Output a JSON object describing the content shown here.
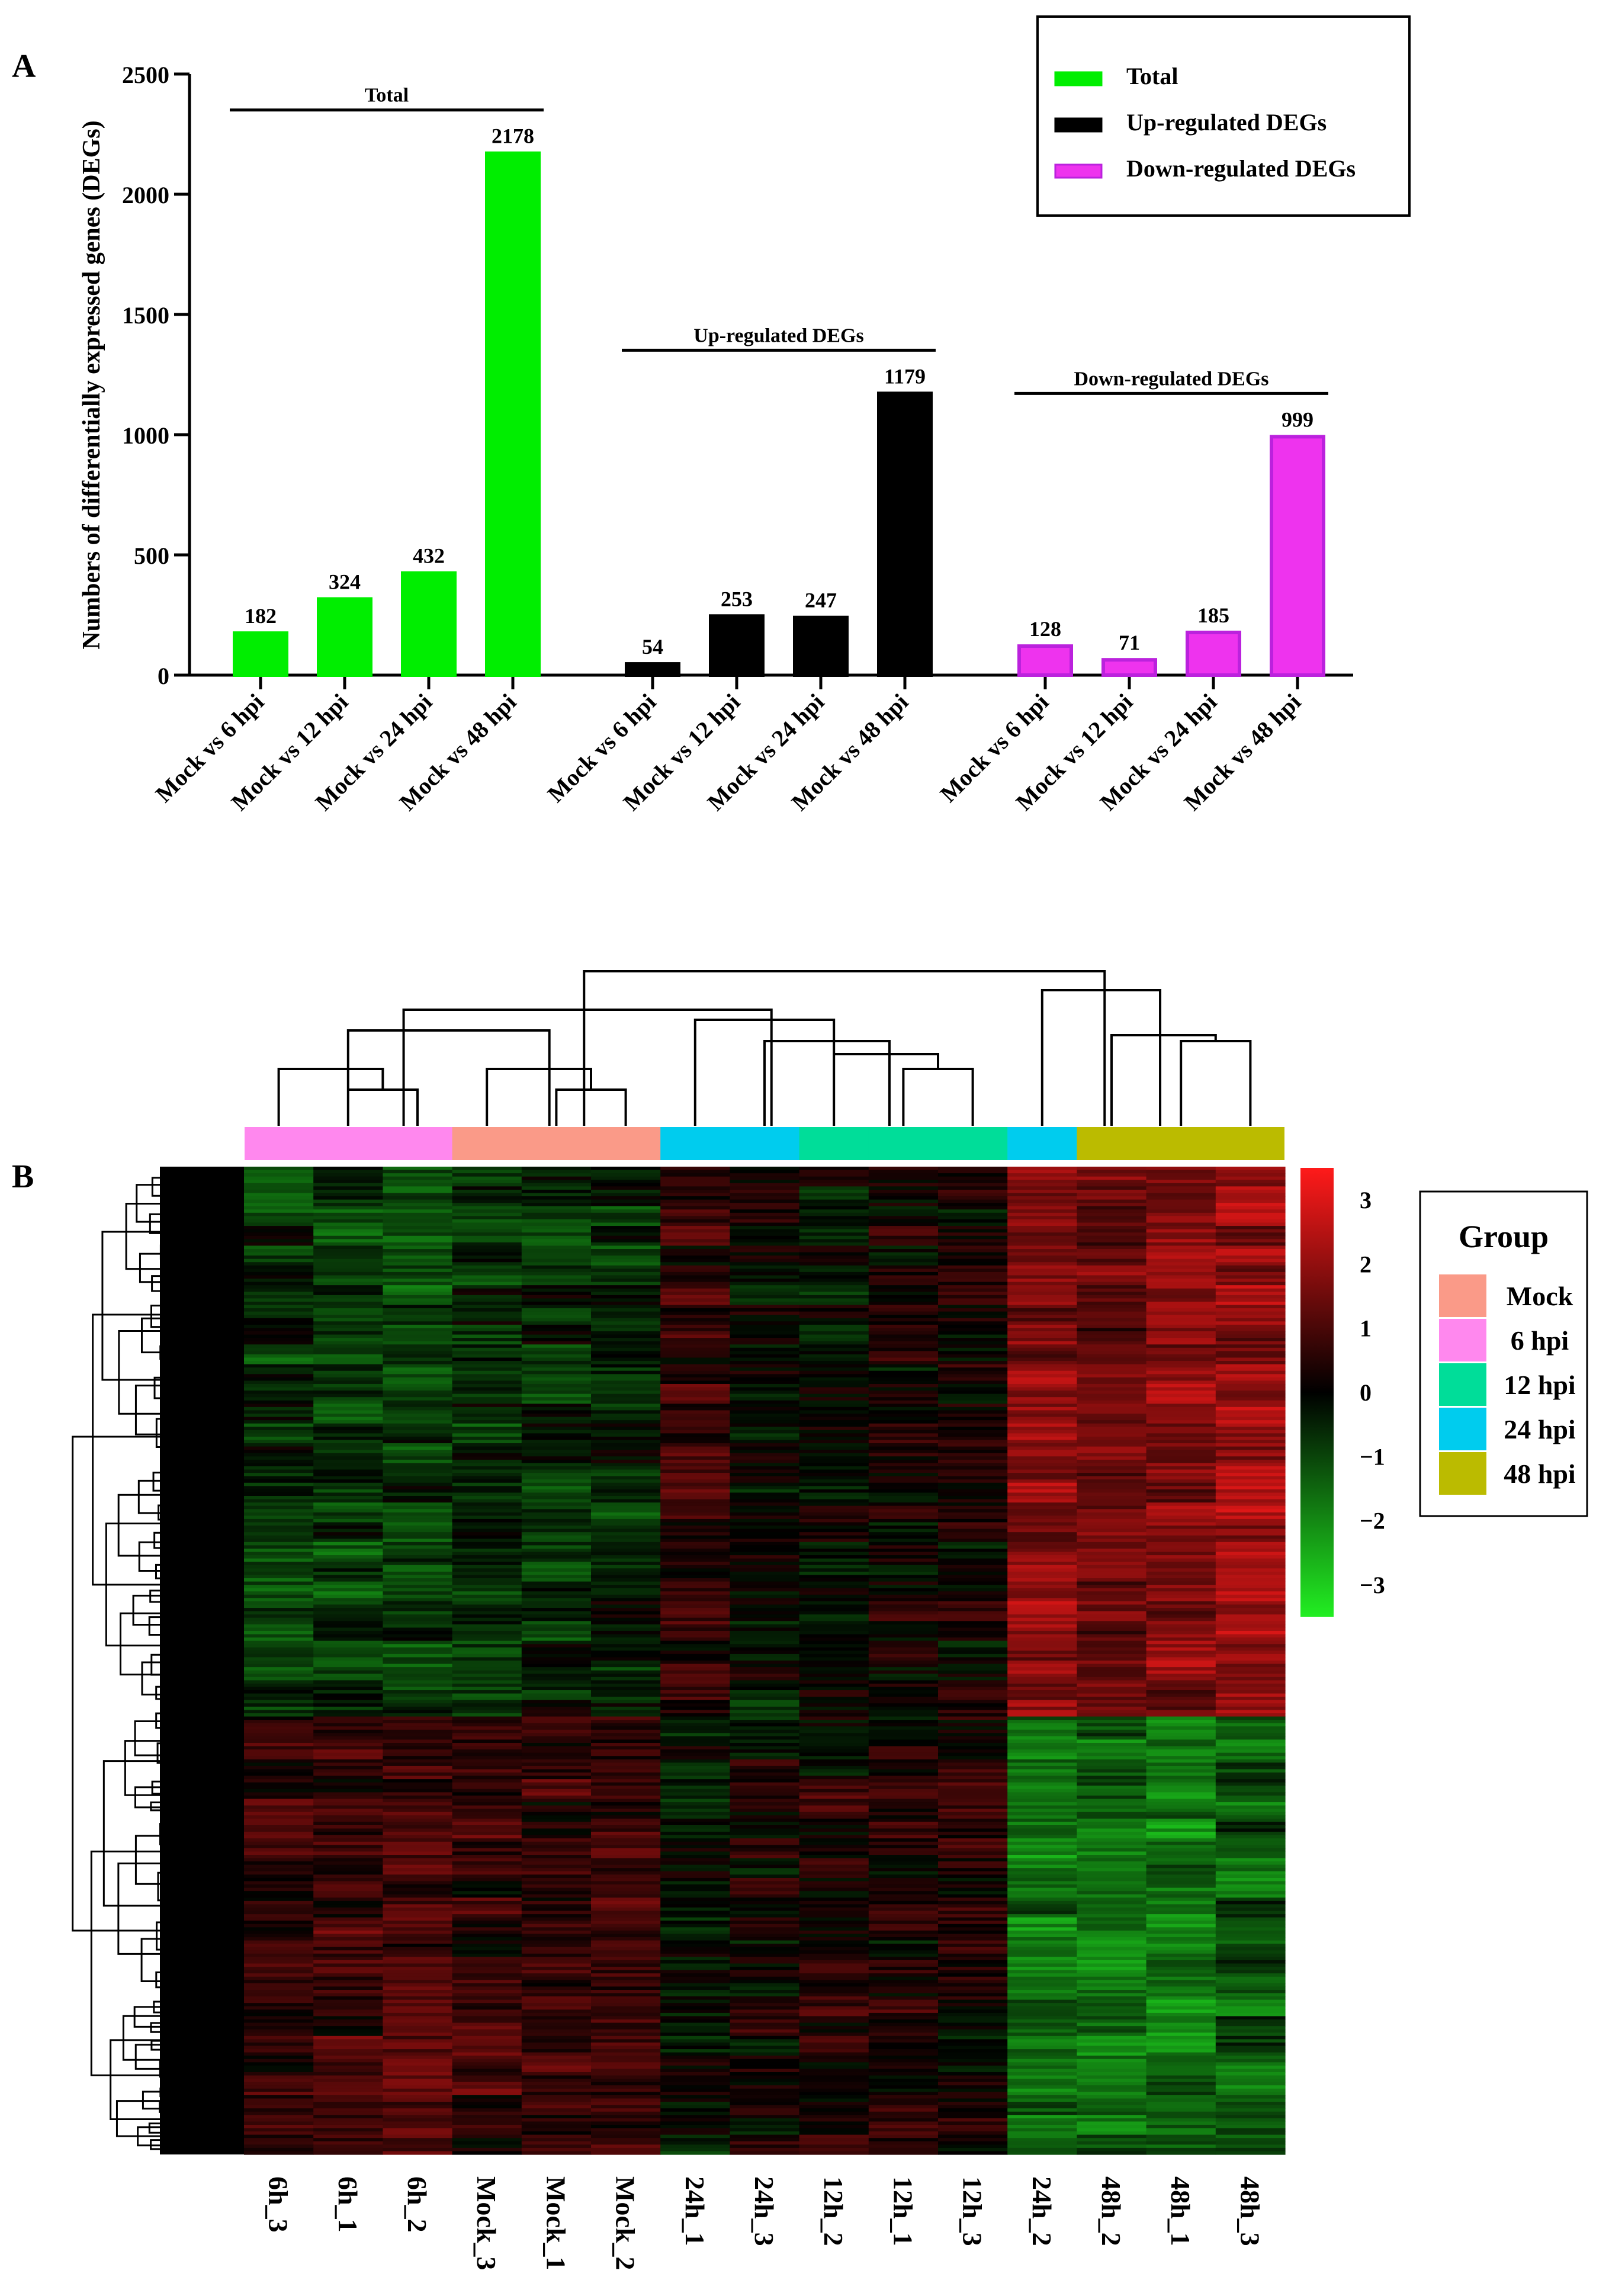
{
  "figure": {
    "panel_a_label": "A",
    "panel_b_label": "B"
  },
  "chart_data": [
    {
      "type": "bar",
      "panel": "A",
      "ylabel": "Numbers of differentially expressed genes (DEGs)",
      "xlabel": "",
      "ylim": [
        0,
        2500
      ],
      "yticks": [
        0,
        500,
        1000,
        1500,
        2000,
        2500
      ],
      "groups": [
        {
          "name": "Total",
          "color": "#00ee00",
          "border": "#00ee00",
          "categories": [
            "Mock vs 6 hpi",
            "Mock vs 12 hpi",
            "Mock vs 24 hpi",
            "Mock vs 48 hpi"
          ],
          "values": [
            182,
            324,
            432,
            2178
          ]
        },
        {
          "name": "Up-regulated DEGs",
          "color": "#000000",
          "border": "#000000",
          "categories": [
            "Mock vs 6 hpi",
            "Mock vs 12 hpi",
            "Mock vs 24 hpi",
            "Mock vs 48 hpi"
          ],
          "values": [
            54,
            253,
            247,
            1179
          ]
        },
        {
          "name": "Down-regulated DEGs",
          "color": "#ee33ee",
          "border": "#bb22dd",
          "categories": [
            "Mock vs 6 hpi",
            "Mock vs 12 hpi",
            "Mock vs 24 hpi",
            "Mock vs 48 hpi"
          ],
          "values": [
            128,
            71,
            185,
            999
          ]
        }
      ],
      "legend": {
        "position": "top-right",
        "entries": [
          "Total",
          "Up-regulated DEGs",
          "Down-regulated DEGs"
        ]
      }
    },
    {
      "type": "heatmap",
      "panel": "B",
      "columns": [
        "6h_3",
        "6h_1",
        "6h_2",
        "Mock_3",
        "Mock_1",
        "Mock_2",
        "24h_1",
        "24h_3",
        "12h_2",
        "12h_1",
        "12h_3",
        "24h_2",
        "48h_2",
        "48h_1",
        "48h_3"
      ],
      "column_groups": [
        "6 hpi",
        "6 hpi",
        "6 hpi",
        "Mock",
        "Mock",
        "Mock",
        "24 hpi",
        "24 hpi",
        "12 hpi",
        "12 hpi",
        "12 hpi",
        "24 hpi",
        "48 hpi",
        "48 hpi",
        "48 hpi"
      ],
      "colorbar": {
        "range": [
          -3.5,
          3.5
        ],
        "ticks": [
          3,
          2,
          1,
          0,
          -1,
          -2,
          -3
        ],
        "tick_labels": [
          "3",
          "2",
          "1",
          "0",
          "−1",
          "−2",
          "−3"
        ],
        "low_color": "#22ee22",
        "mid_color": "#000000",
        "high_color": "#ff1a1a"
      },
      "group_legend": {
        "title": "Group",
        "entries": [
          {
            "label": "Mock",
            "color": "#fa9a88"
          },
          {
            "label": "6 hpi",
            "color": "#ff88ee"
          },
          {
            "label": "12 hpi",
            "color": "#00dd99"
          },
          {
            "label": "24 hpi",
            "color": "#00ccee"
          },
          {
            "label": "48 hpi",
            "color": "#bbbb00"
          }
        ]
      },
      "row_blocks": [
        {
          "description": "upregulated-late",
          "pattern": [
            -0.7,
            -0.8,
            -0.8,
            -0.6,
            -0.5,
            -0.5,
            0.6,
            -0.1,
            -0.2,
            0.2,
            0.1,
            1.8,
            1.4,
            1.8,
            2.0
          ]
        },
        {
          "description": "downregulated-late",
          "pattern": [
            0.7,
            0.8,
            0.9,
            0.7,
            0.7,
            0.6,
            -0.2,
            0.1,
            0.4,
            0.2,
            0.3,
            -1.6,
            -1.5,
            -1.6,
            -1.2
          ]
        }
      ]
    }
  ]
}
